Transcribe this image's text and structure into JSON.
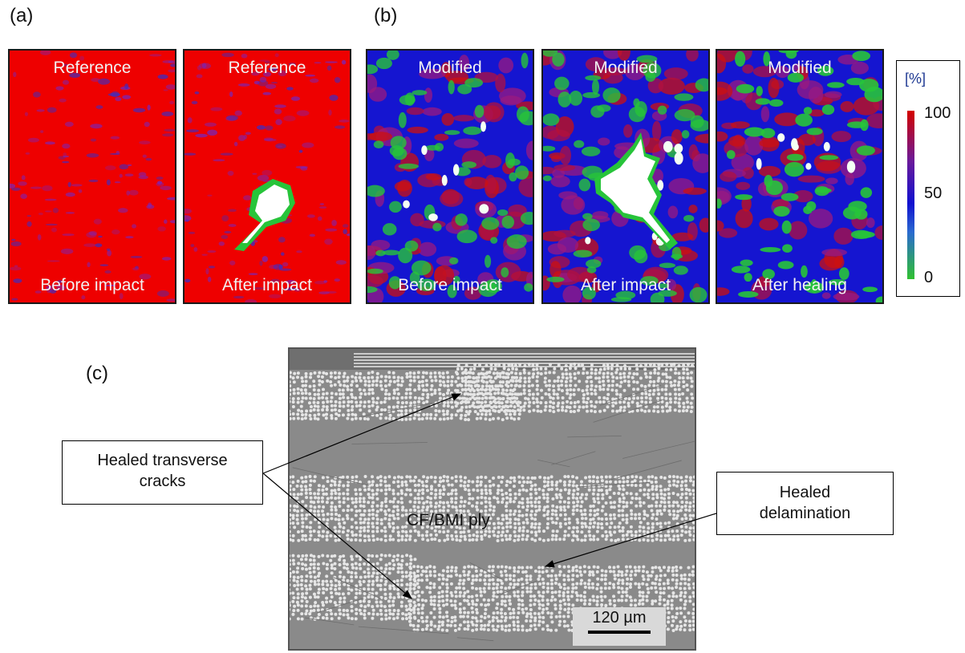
{
  "panels": {
    "a_label": "(a)",
    "b_label": "(b)",
    "c_label": "(c)"
  },
  "scans": [
    {
      "top": "Reference",
      "bottom": "Before impact",
      "damage": "none"
    },
    {
      "top": "Reference",
      "bottom": "After impact",
      "damage": "small"
    },
    {
      "top": "Modified",
      "bottom": "Before impact",
      "damage": "spots"
    },
    {
      "top": "Modified",
      "bottom": "After impact",
      "damage": "large"
    },
    {
      "top": "Modified",
      "bottom": "After healing",
      "damage": "spots"
    }
  ],
  "legend": {
    "unit": "[%]",
    "tick_high": "100",
    "tick_mid": "50",
    "tick_low": "0",
    "colors": [
      "#d40000",
      "#5a1fa0",
      "#1010d0",
      "#30c030"
    ]
  },
  "micrograph": {
    "ply_label": "CF/BMI ply",
    "scale_label": "120 µm"
  },
  "callouts": {
    "transverse": "Healed transverse\ncracks",
    "delamination": "Healed\ndelamination"
  },
  "colors": {
    "red": "#ee0000",
    "blue": "#1515d0",
    "green": "#27c43a",
    "matrix": "#8a8a8a",
    "fiber": "#e6e6e6"
  }
}
